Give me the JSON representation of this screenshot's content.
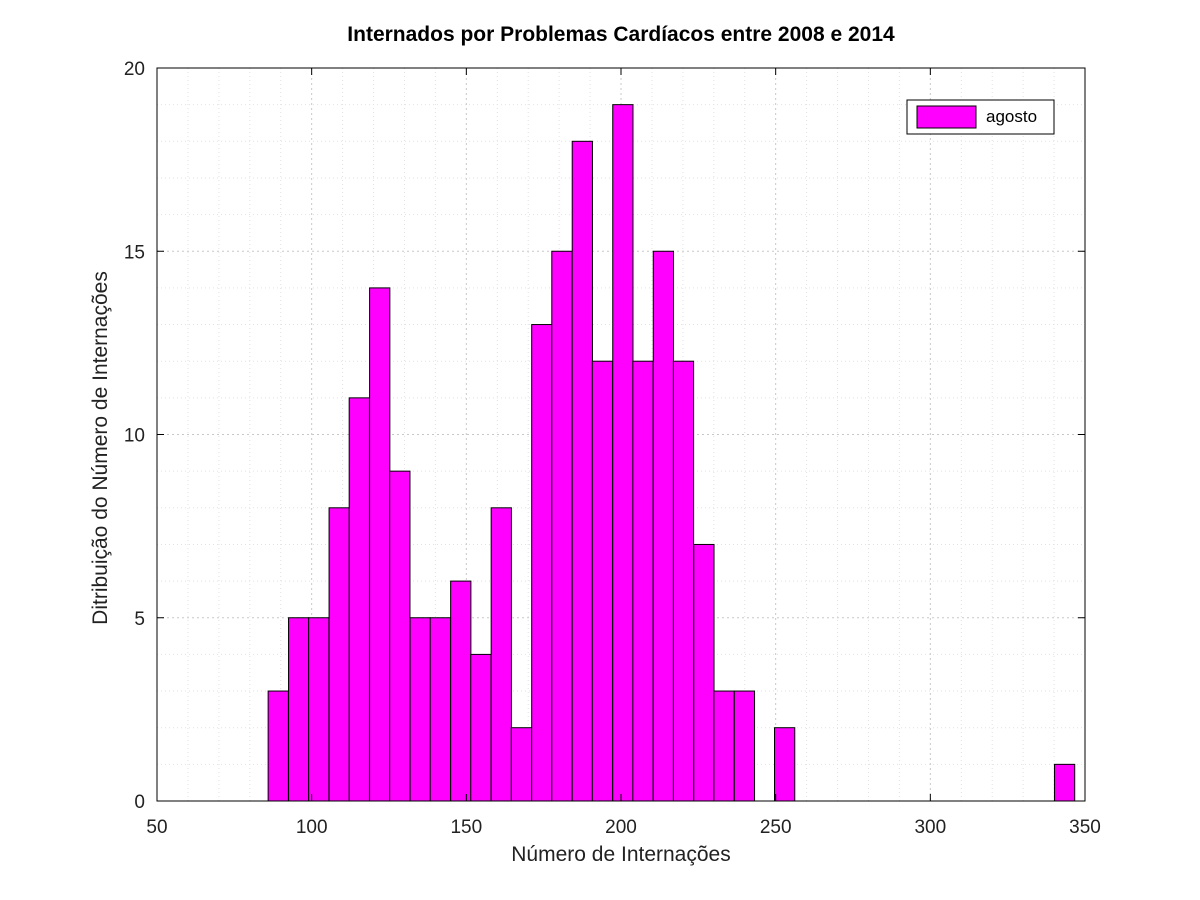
{
  "chart_data": {
    "type": "bar",
    "subtype": "histogram",
    "title": "Internados por Problemas Cardíacos entre 2008 e 2014",
    "xlabel": "Número de Internações",
    "ylabel": "Ditribuição do Número de Internações",
    "xlim": [
      50,
      350
    ],
    "ylim": [
      0,
      20
    ],
    "x_ticks": [
      50,
      100,
      150,
      200,
      250,
      300,
      350
    ],
    "y_ticks": [
      0,
      5,
      10,
      15,
      20
    ],
    "grid": true,
    "minor_grid": true,
    "legend_position": "top-right",
    "bar_color": "#ff00ff",
    "bin_width": 6.55,
    "series": [
      {
        "name": "agosto",
        "bins": [
          {
            "x": 89.2,
            "count": 3
          },
          {
            "x": 95.8,
            "count": 5
          },
          {
            "x": 102.3,
            "count": 5
          },
          {
            "x": 108.9,
            "count": 8
          },
          {
            "x": 115.4,
            "count": 11
          },
          {
            "x": 122.0,
            "count": 14
          },
          {
            "x": 128.5,
            "count": 9
          },
          {
            "x": 135.1,
            "count": 5
          },
          {
            "x": 141.6,
            "count": 5
          },
          {
            "x": 148.2,
            "count": 6
          },
          {
            "x": 154.7,
            "count": 4
          },
          {
            "x": 161.3,
            "count": 8
          },
          {
            "x": 167.8,
            "count": 2
          },
          {
            "x": 174.4,
            "count": 13
          },
          {
            "x": 180.9,
            "count": 15
          },
          {
            "x": 187.5,
            "count": 18
          },
          {
            "x": 194.0,
            "count": 12
          },
          {
            "x": 200.6,
            "count": 19
          },
          {
            "x": 207.1,
            "count": 12
          },
          {
            "x": 213.7,
            "count": 15
          },
          {
            "x": 220.2,
            "count": 12
          },
          {
            "x": 226.8,
            "count": 7
          },
          {
            "x": 233.3,
            "count": 3
          },
          {
            "x": 239.9,
            "count": 3
          },
          {
            "x": 252.9,
            "count": 2
          },
          {
            "x": 343.4,
            "count": 1
          }
        ]
      }
    ]
  }
}
